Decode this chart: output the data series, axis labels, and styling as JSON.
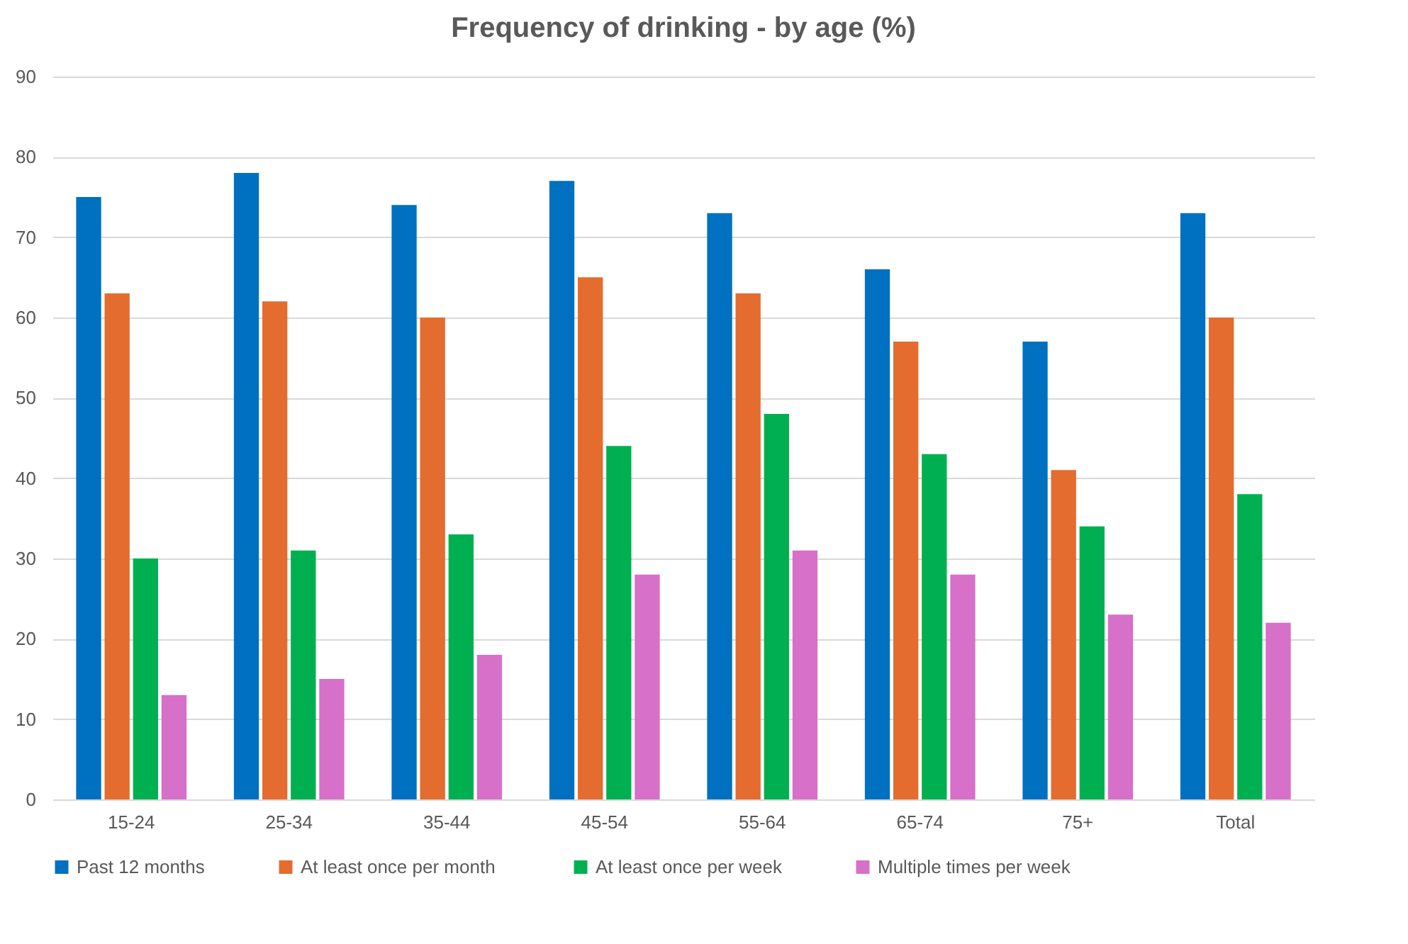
{
  "chart_data": {
    "type": "bar",
    "title": "Frequency of drinking - by age (%)",
    "categories": [
      "15-24",
      "25-34",
      "35-44",
      "45-54",
      "55-64",
      "65-74",
      "75+",
      "Total"
    ],
    "series": [
      {
        "name": "Past 12 months",
        "color": "#0070c0",
        "values": [
          75,
          78,
          74,
          77,
          73,
          66,
          57,
          73
        ]
      },
      {
        "name": "At least  once per month",
        "color": "#e46c2e",
        "values": [
          63,
          62,
          60,
          65,
          63,
          57,
          41,
          60
        ]
      },
      {
        "name": "At least once per week",
        "color": "#00b050",
        "values": [
          30,
          31,
          33,
          44,
          48,
          43,
          34,
          38
        ]
      },
      {
        "name": "Multiple times per week",
        "color": "#d670c8",
        "values": [
          13,
          15,
          18,
          28,
          31,
          28,
          23,
          22
        ]
      }
    ],
    "ylim": [
      0,
      90
    ],
    "yticks": [
      0,
      10,
      20,
      30,
      40,
      50,
      60,
      70,
      80,
      90
    ],
    "grid": "y",
    "legend": "bottom"
  }
}
